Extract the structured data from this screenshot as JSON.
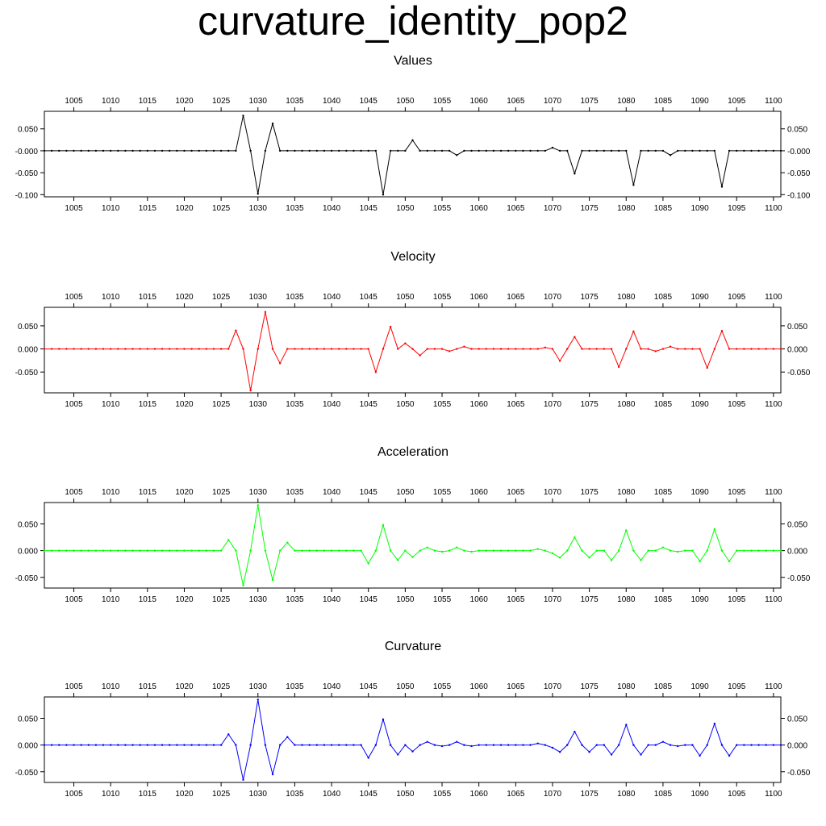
{
  "title": "curvature_identity_pop2",
  "x_ticks": [
    "1005",
    "1010",
    "1015",
    "1020",
    "1025",
    "1030",
    "1035",
    "1040",
    "1045",
    "1050",
    "1055",
    "1060",
    "1065",
    "1070",
    "1075",
    "1080",
    "1085",
    "1090",
    "1095",
    "1100"
  ],
  "chart_data": [
    {
      "type": "line",
      "title": "Values",
      "color": "#000000",
      "x_start": 1001,
      "xlim": [
        1001,
        1101
      ],
      "ylim": [
        -0.105,
        0.09
      ],
      "yticks": [
        -0.1,
        -0.05,
        0.0,
        0.05
      ],
      "ytick_labels": [
        "-0.100",
        "-0.050",
        "-0.000",
        "0.050"
      ],
      "values": [
        0,
        0,
        0,
        0,
        0,
        0,
        0,
        0,
        0,
        0,
        0,
        0,
        0,
        0,
        0,
        0,
        0,
        0,
        0,
        0,
        0,
        0,
        0,
        0,
        0,
        0,
        0,
        0.08,
        0,
        -0.098,
        0,
        0.062,
        0,
        0,
        0,
        0,
        0,
        0,
        0,
        0,
        0,
        0,
        0,
        0,
        0,
        0,
        -0.1,
        0,
        0,
        0,
        0.024,
        0,
        0,
        0,
        0,
        0,
        -0.01,
        0,
        0,
        0,
        0,
        0,
        0,
        0,
        0,
        0,
        0,
        0,
        0,
        0.007,
        0,
        0,
        -0.052,
        0,
        0,
        0,
        0,
        0,
        0,
        0,
        -0.078,
        0,
        0,
        0,
        0,
        -0.01,
        0,
        0,
        0,
        0,
        0,
        0,
        -0.082,
        0,
        0,
        0,
        0,
        0,
        0,
        0,
        0
      ]
    },
    {
      "type": "line",
      "title": "Velocity",
      "color": "#ff0000",
      "x_start": 1001,
      "xlim": [
        1001,
        1101
      ],
      "ylim": [
        -0.095,
        0.09
      ],
      "yticks": [
        -0.05,
        0.0,
        0.05
      ],
      "ytick_labels": [
        "-0.050",
        "0.000",
        "0.050"
      ],
      "values": [
        0,
        0,
        0,
        0,
        0,
        0,
        0,
        0,
        0,
        0,
        0,
        0,
        0,
        0,
        0,
        0,
        0,
        0,
        0,
        0,
        0,
        0,
        0,
        0,
        0,
        0,
        0.04,
        0,
        -0.09,
        0,
        0.08,
        0,
        -0.031,
        0,
        0,
        0,
        0,
        0,
        0,
        0,
        0,
        0,
        0,
        0,
        0,
        -0.05,
        0,
        0.048,
        0,
        0.012,
        0,
        -0.014,
        0,
        0,
        0,
        -0.005,
        0,
        0.005,
        0,
        0,
        0,
        0,
        0,
        0,
        0,
        0,
        0,
        0,
        0.003,
        0,
        -0.026,
        0,
        0.026,
        0,
        0,
        0,
        0,
        0,
        -0.039,
        0,
        0.038,
        0,
        0,
        -0.005,
        0,
        0.005,
        0,
        0,
        0,
        0,
        -0.041,
        0,
        0.039,
        0,
        0,
        0,
        0,
        0,
        0,
        0,
        0
      ]
    },
    {
      "type": "line",
      "title": "Acceleration",
      "color": "#00ff00",
      "x_start": 1001,
      "xlim": [
        1001,
        1101
      ],
      "ylim": [
        -0.07,
        0.09
      ],
      "yticks": [
        -0.05,
        0.0,
        0.05
      ],
      "ytick_labels": [
        "-0.050",
        "0.000",
        "0.050"
      ],
      "values": [
        0,
        0,
        0,
        0,
        0,
        0,
        0,
        0,
        0,
        0,
        0,
        0,
        0,
        0,
        0,
        0,
        0,
        0,
        0,
        0,
        0,
        0,
        0,
        0,
        0,
        0.02,
        0,
        -0.065,
        0,
        0.085,
        0,
        -0.055,
        0,
        0.015,
        0,
        0,
        0,
        0,
        0,
        0,
        0,
        0,
        0,
        0,
        -0.024,
        0,
        0.048,
        0,
        -0.018,
        0,
        -0.012,
        0,
        0.006,
        0,
        -0.002,
        0,
        0.006,
        0,
        -0.002,
        0,
        0,
        0,
        0,
        0,
        0,
        0,
        0,
        0.003,
        0,
        -0.005,
        -0.013,
        0,
        0.025,
        0,
        -0.013,
        0,
        0,
        -0.018,
        0,
        0.038,
        0,
        -0.018,
        0,
        0,
        0.006,
        0,
        -0.002,
        0,
        0,
        -0.02,
        0,
        0.04,
        0,
        -0.02,
        0,
        0,
        0,
        0,
        0,
        0,
        0
      ]
    },
    {
      "type": "line",
      "title": "Curvature",
      "color": "#0000ff",
      "x_start": 1001,
      "xlim": [
        1001,
        1101
      ],
      "ylim": [
        -0.07,
        0.09
      ],
      "yticks": [
        -0.05,
        0.0,
        0.05
      ],
      "ytick_labels": [
        "-0.050",
        "0.000",
        "0.050"
      ],
      "values": [
        0,
        0,
        0,
        0,
        0,
        0,
        0,
        0,
        0,
        0,
        0,
        0,
        0,
        0,
        0,
        0,
        0,
        0,
        0,
        0,
        0,
        0,
        0,
        0,
        0,
        0.02,
        0,
        -0.065,
        0,
        0.085,
        0,
        -0.055,
        0,
        0.015,
        0,
        0,
        0,
        0,
        0,
        0,
        0,
        0,
        0,
        0,
        -0.024,
        0,
        0.048,
        0,
        -0.018,
        0,
        -0.012,
        0,
        0.006,
        0,
        -0.002,
        0,
        0.006,
        0,
        -0.002,
        0,
        0,
        0,
        0,
        0,
        0,
        0,
        0,
        0.003,
        0,
        -0.005,
        -0.013,
        0,
        0.025,
        0,
        -0.013,
        0,
        0,
        -0.018,
        0,
        0.038,
        0,
        -0.018,
        0,
        0,
        0.006,
        0,
        -0.002,
        0,
        0,
        -0.02,
        0,
        0.04,
        0,
        -0.02,
        0,
        0,
        0,
        0,
        0,
        0,
        0
      ]
    }
  ]
}
